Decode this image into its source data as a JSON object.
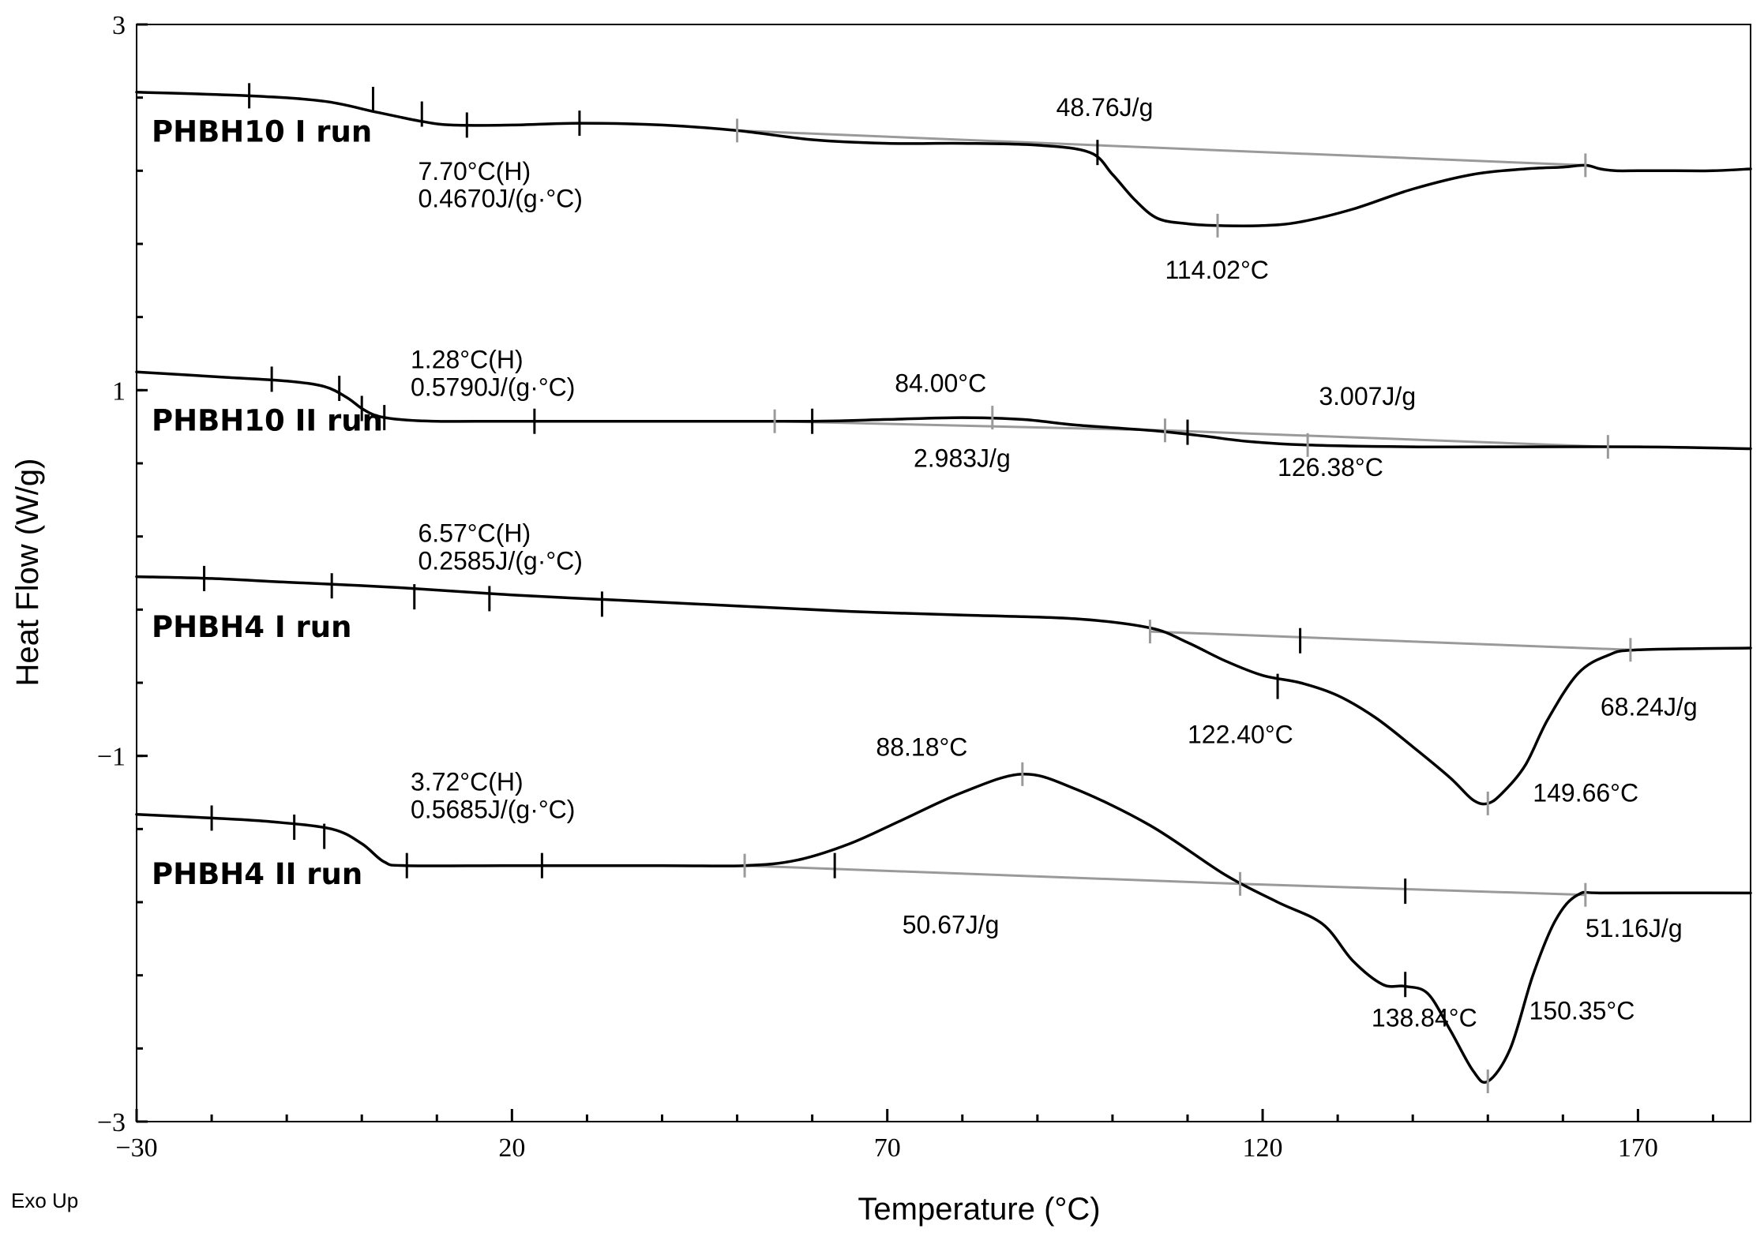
{
  "chart_data": {
    "type": "line",
    "title": "",
    "xlabel": "Temperature (°C)",
    "ylabel": "Heat Flow (W/g)",
    "footnote": "Exo Up",
    "xlim": [
      -30,
      185
    ],
    "ylim": [
      -3,
      3
    ],
    "x_ticks": [
      -30,
      20,
      70,
      120,
      170
    ],
    "x_tick_labels": [
      "−30",
      "20",
      "70",
      "120",
      "170"
    ],
    "y_ticks": [
      3,
      1,
      -1,
      -3
    ],
    "y_tick_labels": [
      "3",
      "1",
      "−1",
      "−3"
    ],
    "series": [
      {
        "name": "PHBH10 I run",
        "label": "PHBH10 I run",
        "points": [
          [
            -30,
            2.63
          ],
          [
            -15,
            2.61
          ],
          [
            -5,
            2.58
          ],
          [
            2,
            2.52
          ],
          [
            8,
            2.47
          ],
          [
            12,
            2.45
          ],
          [
            20,
            2.45
          ],
          [
            29,
            2.46
          ],
          [
            40,
            2.45
          ],
          [
            50,
            2.42
          ],
          [
            60,
            2.37
          ],
          [
            70,
            2.35
          ],
          [
            80,
            2.35
          ],
          [
            90,
            2.34
          ],
          [
            97,
            2.3
          ],
          [
            100,
            2.18
          ],
          [
            103,
            2.04
          ],
          [
            106,
            1.94
          ],
          [
            110,
            1.91
          ],
          [
            114,
            1.9
          ],
          [
            120,
            1.9
          ],
          [
            125,
            1.92
          ],
          [
            132,
            1.99
          ],
          [
            140,
            2.1
          ],
          [
            148,
            2.18
          ],
          [
            155,
            2.21
          ],
          [
            160,
            2.22
          ],
          [
            163,
            2.23
          ],
          [
            165,
            2.21
          ],
          [
            167,
            2.2
          ],
          [
            170,
            2.2
          ],
          [
            175,
            2.2
          ],
          [
            180,
            2.2
          ],
          [
            185,
            2.21
          ]
        ],
        "baseline": [
          [
            50,
            2.42
          ],
          [
            163,
            2.23
          ]
        ],
        "black_ticks": [
          [
            -15,
            2.61
          ],
          [
            1.5,
            2.59
          ],
          [
            8,
            2.51
          ],
          [
            14,
            2.45
          ],
          [
            29,
            2.46
          ],
          [
            98,
            2.3
          ]
        ],
        "gray_ticks": [
          [
            50,
            2.42
          ],
          [
            114,
            1.9
          ],
          [
            163,
            2.23
          ]
        ],
        "annotations": [
          {
            "text": "7.70°C(H)",
            "x": 7.5,
            "y": 2.15
          },
          {
            "text": "0.4670J/(g·°C)",
            "x": 7.5,
            "y": 2.0
          },
          {
            "text": "48.76J/g",
            "x": 92.5,
            "y": 2.5
          },
          {
            "text": "114.02°C",
            "x": 107,
            "y": 1.61
          }
        ]
      },
      {
        "name": "PHBH10 II run",
        "label": "PHBH10 II run",
        "points": [
          [
            -30,
            1.1
          ],
          [
            -18,
            1.07
          ],
          [
            -10,
            1.05
          ],
          [
            -5,
            1.02
          ],
          [
            -2,
            0.96
          ],
          [
            0,
            0.9
          ],
          [
            2,
            0.86
          ],
          [
            5,
            0.84
          ],
          [
            10,
            0.83
          ],
          [
            20,
            0.83
          ],
          [
            40,
            0.83
          ],
          [
            60,
            0.83
          ],
          [
            70,
            0.84
          ],
          [
            80,
            0.85
          ],
          [
            88,
            0.84
          ],
          [
            95,
            0.81
          ],
          [
            105,
            0.78
          ],
          [
            112,
            0.75
          ],
          [
            118,
            0.72
          ],
          [
            126,
            0.7
          ],
          [
            140,
            0.69
          ],
          [
            150,
            0.69
          ],
          [
            170,
            0.69
          ],
          [
            185,
            0.68
          ]
        ],
        "baseline": [
          [
            55,
            0.83
          ],
          [
            107,
            0.78
          ],
          [
            166,
            0.69
          ]
        ],
        "black_ticks": [
          [
            -12,
            1.06
          ],
          [
            -3,
            1.01
          ],
          [
            0,
            0.9
          ],
          [
            3,
            0.85
          ],
          [
            23,
            0.83
          ],
          [
            60,
            0.83
          ],
          [
            110,
            0.77
          ]
        ],
        "gray_ticks": [
          [
            55,
            0.83
          ],
          [
            84,
            0.85
          ],
          [
            107,
            0.78
          ],
          [
            126,
            0.7
          ],
          [
            166,
            0.69
          ]
        ],
        "annotations": [
          {
            "text": "1.28°C(H)",
            "x": 6.5,
            "y": 1.12
          },
          {
            "text": "0.5790J/(g·°C)",
            "x": 6.5,
            "y": 0.97
          },
          {
            "text": "84.00°C",
            "x": 71,
            "y": 0.99
          },
          {
            "text": "3.007J/g",
            "x": 127.5,
            "y": 0.92
          },
          {
            "text": "2.983J/g",
            "x": 73.5,
            "y": 0.58
          },
          {
            "text": "126.38°C",
            "x": 122,
            "y": 0.53
          }
        ]
      },
      {
        "name": "PHBH4 I run",
        "label": "PHBH4 I run",
        "points": [
          [
            -30,
            -0.02
          ],
          [
            -20,
            -0.03
          ],
          [
            -10,
            -0.05
          ],
          [
            5,
            -0.08
          ],
          [
            20,
            -0.12
          ],
          [
            35,
            -0.15
          ],
          [
            50,
            -0.18
          ],
          [
            65,
            -0.21
          ],
          [
            80,
            -0.23
          ],
          [
            95,
            -0.25
          ],
          [
            105,
            -0.3
          ],
          [
            110,
            -0.38
          ],
          [
            115,
            -0.48
          ],
          [
            120,
            -0.56
          ],
          [
            125,
            -0.6
          ],
          [
            130,
            -0.67
          ],
          [
            135,
            -0.79
          ],
          [
            140,
            -0.95
          ],
          [
            145,
            -1.12
          ],
          [
            148,
            -1.24
          ],
          [
            150,
            -1.26
          ],
          [
            152,
            -1.2
          ],
          [
            155,
            -1.05
          ],
          [
            158,
            -0.8
          ],
          [
            162,
            -0.55
          ],
          [
            166,
            -0.45
          ],
          [
            170,
            -0.42
          ],
          [
            185,
            -0.41
          ]
        ],
        "baseline": [
          [
            105,
            -0.32
          ],
          [
            169,
            -0.42
          ]
        ],
        "black_ticks": [
          [
            -21,
            -0.03
          ],
          [
            -4,
            -0.07
          ],
          [
            7,
            -0.13
          ],
          [
            17,
            -0.14
          ],
          [
            32,
            -0.17
          ],
          [
            125,
            -0.37
          ],
          [
            122,
            -0.62
          ]
        ],
        "gray_ticks": [
          [
            105,
            -0.32
          ],
          [
            150,
            -1.26
          ],
          [
            169,
            -0.42
          ]
        ],
        "annotations": [
          {
            "text": "6.57°C(H)",
            "x": 7.5,
            "y": 0.17
          },
          {
            "text": "0.2585J/(g·°C)",
            "x": 7.5,
            "y": 0.02
          },
          {
            "text": "122.40°C",
            "x": 110,
            "y": -0.93
          },
          {
            "text": "68.24J/g",
            "x": 165,
            "y": -0.78
          },
          {
            "text": "149.66°C",
            "x": 156,
            "y": -1.25
          }
        ]
      },
      {
        "name": "PHBH4 II run",
        "label": "PHBH4 II run",
        "points": [
          [
            -30,
            -1.32
          ],
          [
            -20,
            -1.34
          ],
          [
            -12,
            -1.36
          ],
          [
            -4,
            -1.4
          ],
          [
            0,
            -1.48
          ],
          [
            3,
            -1.58
          ],
          [
            6,
            -1.6
          ],
          [
            20,
            -1.6
          ],
          [
            40,
            -1.6
          ],
          [
            51,
            -1.6
          ],
          [
            58,
            -1.57
          ],
          [
            65,
            -1.48
          ],
          [
            72,
            -1.35
          ],
          [
            80,
            -1.2
          ],
          [
            88,
            -1.1
          ],
          [
            95,
            -1.18
          ],
          [
            105,
            -1.38
          ],
          [
            115,
            -1.65
          ],
          [
            122,
            -1.8
          ],
          [
            128,
            -1.92
          ],
          [
            132,
            -2.12
          ],
          [
            136,
            -2.25
          ],
          [
            139,
            -2.26
          ],
          [
            142,
            -2.3
          ],
          [
            145,
            -2.5
          ],
          [
            148,
            -2.72
          ],
          [
            150,
            -2.78
          ],
          [
            153,
            -2.6
          ],
          [
            156,
            -2.2
          ],
          [
            159,
            -1.9
          ],
          [
            162,
            -1.76
          ],
          [
            166,
            -1.75
          ],
          [
            185,
            -1.75
          ]
        ],
        "baseline": [
          [
            51,
            -1.6
          ],
          [
            117,
            -1.7
          ],
          [
            163,
            -1.76
          ]
        ],
        "black_ticks": [
          [
            -20,
            -1.34
          ],
          [
            -9,
            -1.39
          ],
          [
            -5,
            -1.44
          ],
          [
            6,
            -1.6
          ],
          [
            24,
            -1.6
          ],
          [
            63,
            -1.6
          ],
          [
            139,
            -1.74
          ],
          [
            139,
            -2.25
          ]
        ],
        "gray_ticks": [
          [
            51,
            -1.6
          ],
          [
            88,
            -1.1
          ],
          [
            117,
            -1.7
          ],
          [
            150,
            -2.78
          ],
          [
            163,
            -1.76
          ]
        ],
        "annotations": [
          {
            "text": "88.18°C",
            "x": 68.5,
            "y": -1.0
          },
          {
            "text": "3.72°C(H)",
            "x": 6.5,
            "y": -1.19
          },
          {
            "text": "0.5685J/(g·°C)",
            "x": 6.5,
            "y": -1.34
          },
          {
            "text": "50.67J/g",
            "x": 72,
            "y": -1.97
          },
          {
            "text": "51.16J/g",
            "x": 163,
            "y": -1.99
          },
          {
            "text": "138.84°C",
            "x": 134.5,
            "y": -2.48
          },
          {
            "text": "150.35°C",
            "x": 155.5,
            "y": -2.44
          }
        ]
      }
    ],
    "series_label_positions": [
      {
        "x": -28,
        "y": 2.36
      },
      {
        "x": -28,
        "y": 0.78
      },
      {
        "x": -28,
        "y": -0.35
      },
      {
        "x": -28,
        "y": -1.7
      }
    ]
  }
}
